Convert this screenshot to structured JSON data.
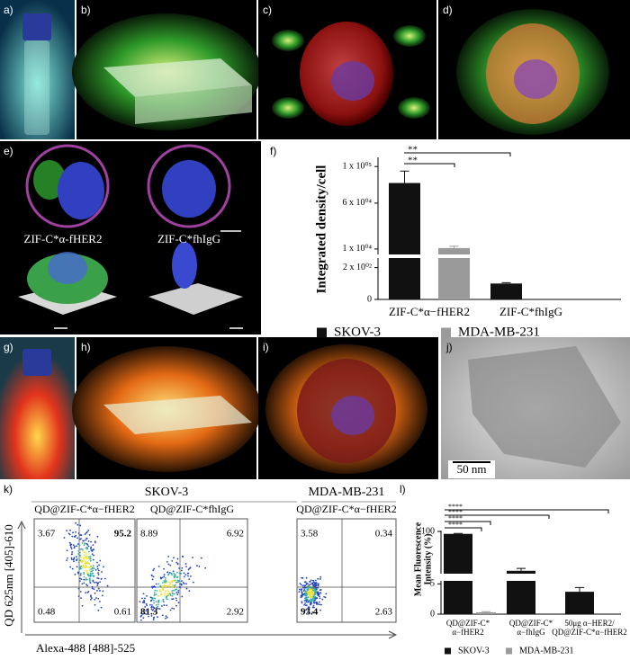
{
  "panel_labels": [
    "a)",
    "b)",
    "c)",
    "d)",
    "e)",
    "f)",
    "g)",
    "h)",
    "i)",
    "j)",
    "k)",
    "l)"
  ],
  "panel_e": {
    "captions": [
      "ZIF-C*α-fHER2",
      "ZIF-C*fhIgG"
    ]
  },
  "panel_j": {
    "scale_bar": "50 nm"
  },
  "chart_data": [
    {
      "type": "bar",
      "y_label": "Integrated density/cell",
      "categories": [
        "ZIF-C*α−fHER2",
        "ZIF-C*fhIgG"
      ],
      "series": [
        {
          "name": "SKOV-3",
          "color": "#111111",
          "values": [
            82000,
            100
          ],
          "errors": [
            13000,
            5
          ]
        },
        {
          "name": "MDA-MB-231",
          "color": "#9a9a9a",
          "values": [
            11000,
            null
          ],
          "errors": [
            2000,
            null
          ]
        }
      ],
      "ylim_lower": [
        0,
        260
      ],
      "yticks_lower": [
        0,
        {
          "value": 200,
          "label": "2 x 10⁰²"
        }
      ],
      "ylim_upper": [
        4000,
        110000
      ],
      "yticks_upper": [
        {
          "value": 10000,
          "label": "1 x 10⁰⁴"
        },
        {
          "value": 60000,
          "label": "6 x 10⁰⁴"
        },
        {
          "value": 100000,
          "label": "1 x 10⁰⁵"
        }
      ],
      "significance": [
        "**",
        "**"
      ]
    },
    {
      "type": "bar",
      "y_label": [
        "Mean Fluorescence",
        "Intensity (%)"
      ],
      "categories": [
        [
          "QD@ZIF-C*",
          "α−fHER2"
        ],
        [
          "QD@ZIF-C*",
          "α−fhIgG"
        ],
        [
          "50μg α−HER2/",
          "QD@ZIF-C*α−fHER2"
        ]
      ],
      "series": [
        {
          "name": "SKOV-3",
          "color": "#111111",
          "values": [
            95,
            18,
            3.7
          ],
          "errors": [
            1,
            5,
            0.7
          ]
        },
        {
          "name": "MDA-MB-231",
          "color": "#9a9a9a",
          "values": [
            0.3,
            null,
            null
          ],
          "errors": [
            0.1,
            null,
            null
          ]
        }
      ],
      "ylim_lower": [
        0,
        5.5
      ],
      "yticks_lower": [
        0,
        5
      ],
      "ylim_upper": [
        12,
        102
      ],
      "yticks_upper": [
        100
      ],
      "significance": [
        "****",
        "****",
        "****",
        "****"
      ]
    }
  ],
  "panel_k": {
    "group_titles": [
      "SKOV-3",
      "MDA-MB-231"
    ],
    "plots": [
      {
        "title": "QD@ZIF-C*α−fHER2",
        "quadrants": [
          3.67,
          95.2,
          0.48,
          0.61
        ],
        "bold": 1
      },
      {
        "title": "QD@ZIF-C*fhIgG",
        "quadrants": [
          8.89,
          6.92,
          81.3,
          2.92
        ],
        "bold": 2
      },
      {
        "title": "QD@ZIF-C*α−fHER2",
        "quadrants": [
          3.58,
          0.34,
          93.4,
          2.63
        ],
        "bold": 2
      }
    ],
    "y_label": "QD 625nm [405]-610",
    "x_label": "Alexa-488 [488]-525"
  }
}
